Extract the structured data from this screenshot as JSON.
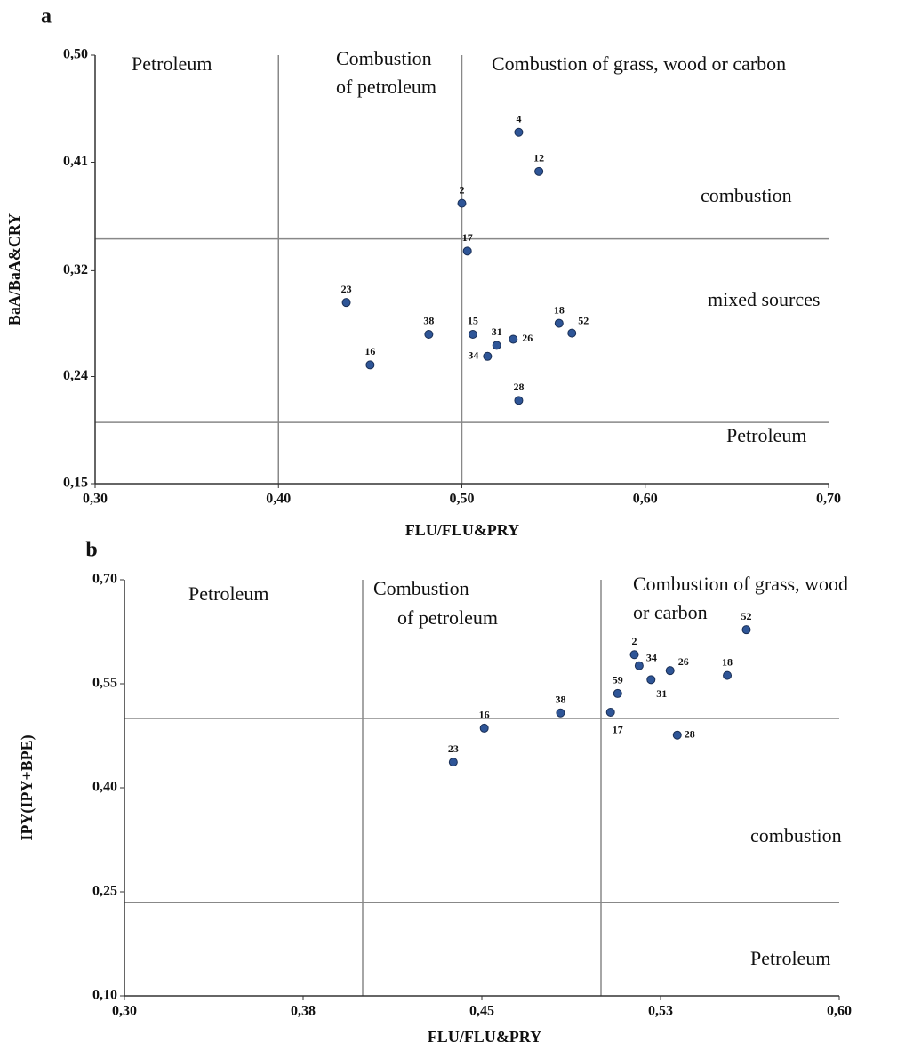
{
  "chart_data": [
    {
      "type": "scatter",
      "panel": "a",
      "x_label": "FLU/FLU&PRY",
      "y_label": "BaA/BaA&CRY",
      "color": "#2e5597",
      "xlim": [
        0.3,
        0.7
      ],
      "ylim": [
        0.15,
        0.5
      ],
      "xticks": [
        {
          "value": 0.3,
          "label": "0,30"
        },
        {
          "value": 0.4,
          "label": "0,40"
        },
        {
          "value": 0.5,
          "label": "0,50"
        },
        {
          "value": 0.6,
          "label": "0,60"
        },
        {
          "value": 0.7,
          "label": "0,70"
        }
      ],
      "yticks": [
        {
          "value": 0.15,
          "label": "0,15"
        },
        {
          "value": 0.2375,
          "label": "0,24"
        },
        {
          "value": 0.324,
          "label": "0,32"
        },
        {
          "value": 0.4125,
          "label": "0,41"
        },
        {
          "value": 0.5,
          "label": "0,50"
        }
      ],
      "vlines": [
        0.4,
        0.5
      ],
      "hlines": [
        0.35,
        0.2
      ],
      "labels": [
        "4",
        "12",
        "2",
        "17",
        "23",
        "38",
        "15",
        "31",
        "26",
        "34",
        "18",
        "52",
        "16",
        "28"
      ],
      "x": [
        0.531,
        0.542,
        0.5,
        0.503,
        0.437,
        0.482,
        0.506,
        0.519,
        0.528,
        0.514,
        0.553,
        0.56,
        0.45,
        0.531
      ],
      "values": [
        0.437,
        0.405,
        0.379,
        0.34,
        0.298,
        0.272,
        0.272,
        0.263,
        0.268,
        0.254,
        0.281,
        0.273,
        0.247,
        0.218
      ],
      "annotations": [
        "Petroleum",
        "Combustion",
        "of petroleum",
        "Combustion of grass, wood or carbon",
        "combustion",
        "mixed sources",
        "Petroleum"
      ]
    },
    {
      "type": "scatter",
      "panel": "b",
      "x_label": "FLU/FLU&PRY",
      "y_label": "IPY(IPY+BPE)",
      "color": "#2e5597",
      "xlim": [
        0.3,
        0.6
      ],
      "ylim": [
        0.1,
        0.7
      ],
      "xticks": [
        {
          "value": 0.3,
          "label": "0,30"
        },
        {
          "value": 0.375,
          "label": "0,38"
        },
        {
          "value": 0.45,
          "label": "0,45"
        },
        {
          "value": 0.525,
          "label": "0,53"
        },
        {
          "value": 0.6,
          "label": "0,60"
        }
      ],
      "yticks": [
        {
          "value": 0.1,
          "label": "0,10"
        },
        {
          "value": 0.25,
          "label": "0,25"
        },
        {
          "value": 0.4,
          "label": "0,40"
        },
        {
          "value": 0.55,
          "label": "0,55"
        },
        {
          "value": 0.7,
          "label": "0,70"
        }
      ],
      "vlines": [
        0.4,
        0.5
      ],
      "hlines": [
        0.5,
        0.235
      ],
      "labels": [
        "52",
        "2",
        "34",
        "26",
        "31",
        "18",
        "59",
        "38",
        "17",
        "16",
        "28",
        "23"
      ],
      "x": [
        0.561,
        0.514,
        0.516,
        0.529,
        0.521,
        0.553,
        0.507,
        0.483,
        0.504,
        0.451,
        0.532,
        0.438
      ],
      "values": [
        0.628,
        0.592,
        0.576,
        0.569,
        0.556,
        0.562,
        0.536,
        0.508,
        0.509,
        0.486,
        0.476,
        0.437
      ],
      "annotations": [
        "Petroleum",
        "Combustion",
        "of petroleum",
        "Combustion of grass, wood",
        "or carbon",
        "combustion",
        "Petroleum"
      ]
    }
  ]
}
